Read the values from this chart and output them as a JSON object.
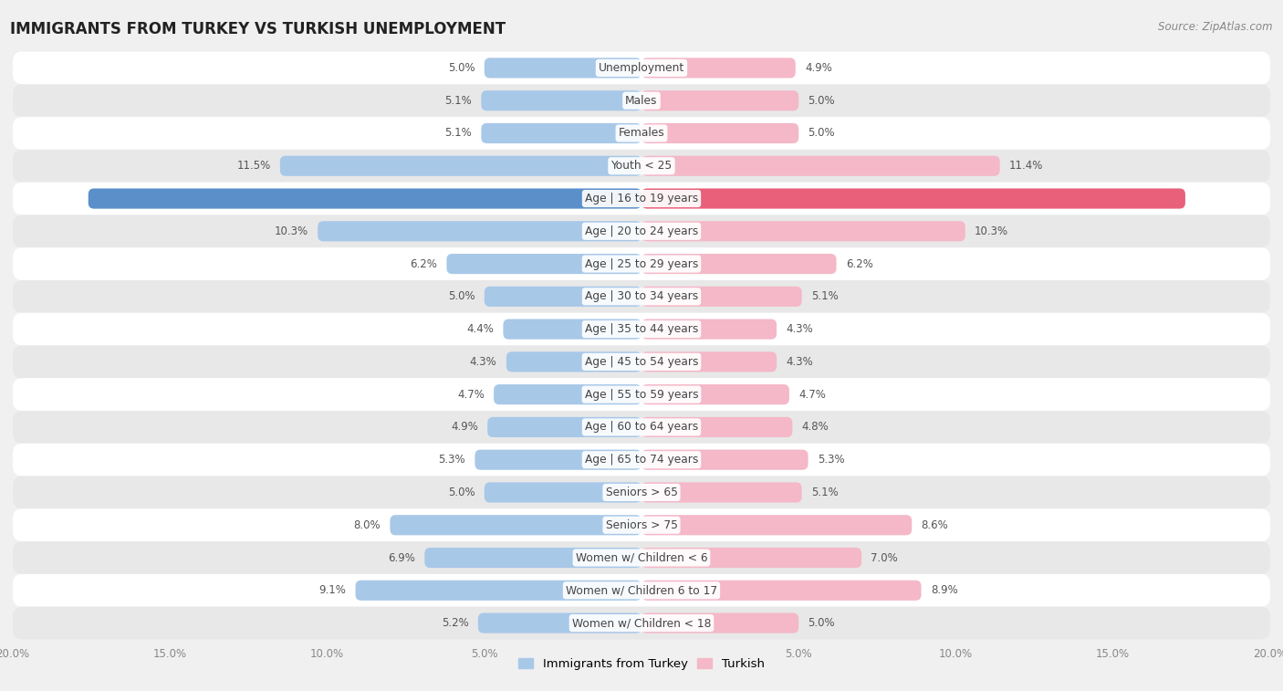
{
  "title": "IMMIGRANTS FROM TURKEY VS TURKISH UNEMPLOYMENT",
  "source": "Source: ZipAtlas.com",
  "categories": [
    "Unemployment",
    "Males",
    "Females",
    "Youth < 25",
    "Age | 16 to 19 years",
    "Age | 20 to 24 years",
    "Age | 25 to 29 years",
    "Age | 30 to 34 years",
    "Age | 35 to 44 years",
    "Age | 45 to 54 years",
    "Age | 55 to 59 years",
    "Age | 60 to 64 years",
    "Age | 65 to 74 years",
    "Seniors > 65",
    "Seniors > 75",
    "Women w/ Children < 6",
    "Women w/ Children 6 to 17",
    "Women w/ Children < 18"
  ],
  "left_values": [
    5.0,
    5.1,
    5.1,
    11.5,
    17.6,
    10.3,
    6.2,
    5.0,
    4.4,
    4.3,
    4.7,
    4.9,
    5.3,
    5.0,
    8.0,
    6.9,
    9.1,
    5.2
  ],
  "right_values": [
    4.9,
    5.0,
    5.0,
    11.4,
    17.3,
    10.3,
    6.2,
    5.1,
    4.3,
    4.3,
    4.7,
    4.8,
    5.3,
    5.1,
    8.6,
    7.0,
    8.9,
    5.0
  ],
  "left_color_normal": "#a8c8e8",
  "left_color_highlight": "#5b8fc9",
  "right_color_normal": "#f4b8c8",
  "right_color_highlight": "#e8607a",
  "background_color": "#f0f0f0",
  "row_bg_odd": "#ffffff",
  "row_bg_even": "#e8e8e8",
  "xlim": 20.0,
  "legend_left": "Immigrants from Turkey",
  "legend_right": "Turkish",
  "bar_height": 0.62,
  "highlight_rows": [
    4
  ]
}
